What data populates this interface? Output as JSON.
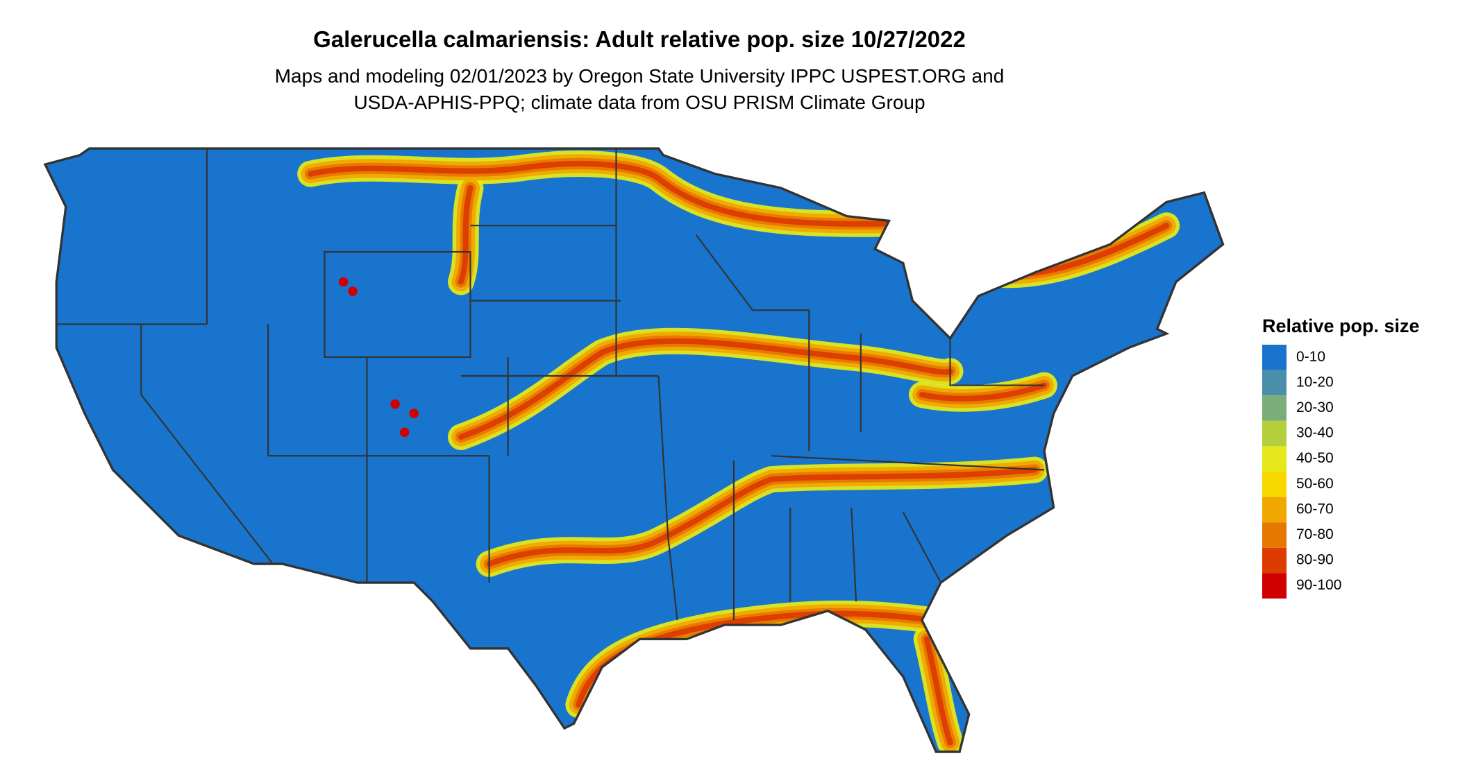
{
  "map": {
    "title": "Galerucella calmariensis: Adult relative pop. size 10/27/2022",
    "subtitle": [
      "Maps and modeling 02/01/2023 by Oregon State University IPPC USPEST.ORG and",
      "USDA-APHIS-PPQ; climate data from OSU PRISM Climate Group"
    ],
    "legend": {
      "title": "Relative pop. size",
      "items": [
        {
          "label": "0-10",
          "color": "#1874cd"
        },
        {
          "label": "10-20",
          "color": "#4a8faa"
        },
        {
          "label": "20-30",
          "color": "#7aad78"
        },
        {
          "label": "30-40",
          "color": "#b3cf3c"
        },
        {
          "label": "40-50",
          "color": "#e5e81a"
        },
        {
          "label": "50-60",
          "color": "#f7d900"
        },
        {
          "label": "60-70",
          "color": "#f0a800"
        },
        {
          "label": "70-80",
          "color": "#e67800"
        },
        {
          "label": "80-90",
          "color": "#dd3c00"
        },
        {
          "label": "90-100",
          "color": "#d10000"
        }
      ]
    }
  }
}
